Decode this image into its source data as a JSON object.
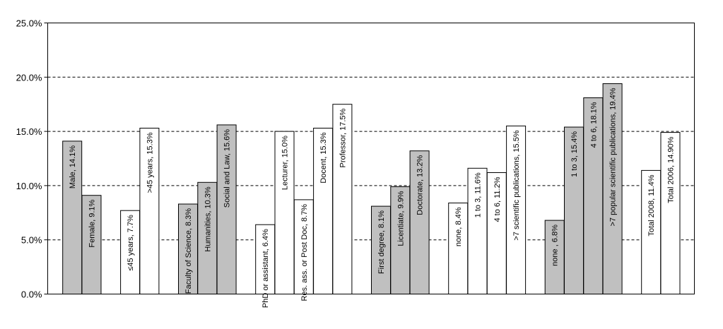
{
  "chart_data": {
    "type": "bar",
    "title": "",
    "xlabel": "",
    "ylabel": "",
    "ylim": [
      0,
      25
    ],
    "y_ticks": [
      "0.0%",
      "5.0%",
      "10.0%",
      "15.0%",
      "20.0%",
      "25.0%"
    ],
    "grid": true,
    "legend": "none",
    "colors": {
      "gray": "#c0c0c0",
      "white": "#ffffff",
      "grid": "#000000"
    },
    "bars": [
      {
        "label": "Male, 14.1%",
        "value": 14.1,
        "fill": "gray",
        "group": 0
      },
      {
        "label": "Female, 9.1%",
        "value": 9.1,
        "fill": "gray",
        "group": 0
      },
      {
        "label": "≤45 years, 7.7%",
        "value": 7.7,
        "fill": "white",
        "group": 1
      },
      {
        "label": ">45 years, 15.3%",
        "value": 15.3,
        "fill": "white",
        "group": 1
      },
      {
        "label": "Faculty of Science, 8.3%",
        "value": 8.3,
        "fill": "gray",
        "group": 2
      },
      {
        "label": "Humanities, 10.3%",
        "value": 10.3,
        "fill": "gray",
        "group": 2
      },
      {
        "label": "Social and Law, 15.6%",
        "value": 15.6,
        "fill": "gray",
        "group": 2
      },
      {
        "label": "PhD or assistant, 6.4%",
        "value": 6.4,
        "fill": "white",
        "group": 3
      },
      {
        "label": "Lecturer, 15.0%",
        "value": 15.0,
        "fill": "white",
        "group": 3
      },
      {
        "label": "Res. ass. or Post Doc, 8.7%",
        "value": 8.7,
        "fill": "white",
        "group": 3
      },
      {
        "label": "Docent, 15.3%",
        "value": 15.3,
        "fill": "white",
        "group": 3
      },
      {
        "label": "Professor, 17.5%",
        "value": 17.5,
        "fill": "white",
        "group": 3
      },
      {
        "label": "First degree, 8.1%",
        "value": 8.1,
        "fill": "gray",
        "group": 4
      },
      {
        "label": "Licentiate, 9.9%",
        "value": 9.9,
        "fill": "gray",
        "group": 4
      },
      {
        "label": "Doctorate, 13.2%",
        "value": 13.2,
        "fill": "gray",
        "group": 4
      },
      {
        "label": "none, 8.4%",
        "value": 8.4,
        "fill": "white",
        "group": 5
      },
      {
        "label": "1 to 3, 11.6%",
        "value": 11.6,
        "fill": "white",
        "group": 5
      },
      {
        "label": "4 to 6, 11.2%",
        "value": 11.2,
        "fill": "white",
        "group": 5
      },
      {
        "label": ">7 scientific publications, 15.5%",
        "value": 15.5,
        "fill": "white",
        "group": 5
      },
      {
        "label": "none , 6.8%",
        "value": 6.8,
        "fill": "gray",
        "group": 6
      },
      {
        "label": "1 to 3, 15.4%",
        "value": 15.4,
        "fill": "gray",
        "group": 6
      },
      {
        "label": "4 to 6, 18.1%",
        "value": 18.1,
        "fill": "gray",
        "group": 6
      },
      {
        "label": ">7 popular scientific publications, 19.4%",
        "value": 19.4,
        "fill": "gray",
        "group": 6
      },
      {
        "label": "Total 2008, 11.4%",
        "value": 11.4,
        "fill": "white",
        "group": 7
      },
      {
        "label": "Total 2006, 14.90%",
        "value": 14.9,
        "fill": "white",
        "group": 7
      }
    ]
  }
}
